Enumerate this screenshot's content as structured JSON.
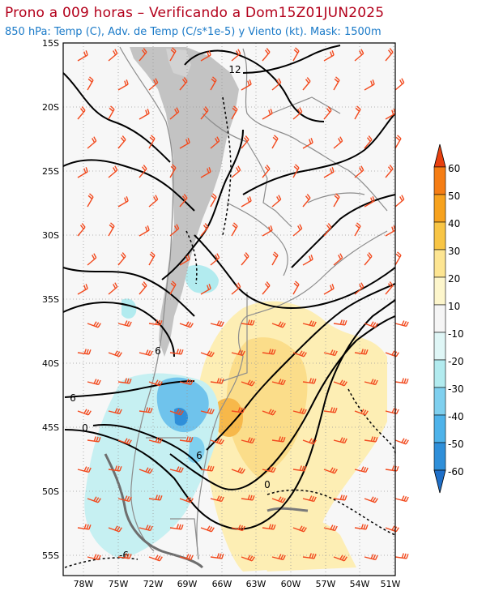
{
  "header": {
    "title": "Prono a 009 horas – Verificando a Dom15Z01JUN2025",
    "subtitle": "850 hPa: Temp (C), Adv. de Temp (C/s*1e-5) y Viento (kt). Mask: 1500m"
  },
  "map": {
    "lat_labels": [
      "15S",
      "20S",
      "25S",
      "30S",
      "35S",
      "40S",
      "45S",
      "50S",
      "55S"
    ],
    "lon_labels": [
      "78W",
      "75W",
      "72W",
      "69W",
      "66W",
      "63W",
      "60W",
      "57W",
      "54W",
      "51W"
    ],
    "contour_labels": [
      "12",
      "6",
      "6",
      "6",
      "0",
      "0",
      "-6"
    ]
  },
  "colorbar": {
    "labels": [
      "60",
      "50",
      "40",
      "30",
      "20",
      "10",
      "-10",
      "-20",
      "-30",
      "-40",
      "-50",
      "-60"
    ],
    "colors": [
      "#e8400f",
      "#f57d14",
      "#f7a21e",
      "#f8c545",
      "#fde592",
      "#fdf6cc",
      "#f5f5f5",
      "#dff6f6",
      "#b2ebef",
      "#7fd0ef",
      "#4eb3ea",
      "#2f8fd9",
      "#1f6fc8"
    ]
  }
}
